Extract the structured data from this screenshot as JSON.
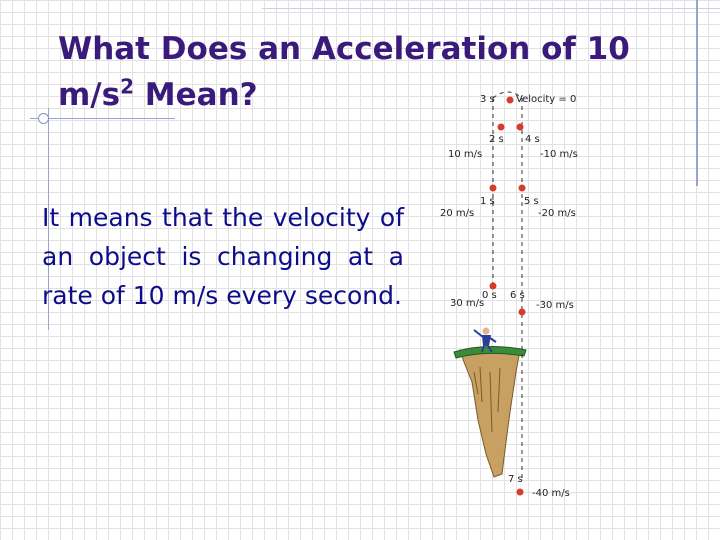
{
  "title": {
    "line1": "What Does an Acceleration of 10",
    "line2_prefix": "m/s",
    "line2_sup": "2",
    "line2_suffix": " Mean?"
  },
  "body": {
    "text": "It means that the velocity of an object is changing at a rate of 10 m/s every second."
  },
  "figure": {
    "labels": {
      "t3": "3 s",
      "top_velocity": "Velocity = 0",
      "t2": "2 s",
      "t4": "4 s",
      "v10_up": "10 m/s",
      "v10_down": "-10 m/s",
      "t1": "1 s",
      "t5": "5 s",
      "v20_up": "20 m/s",
      "v20_down": "-20 m/s",
      "t0": "0 s",
      "t6": "6 s",
      "v30_up": "30 m/s",
      "v30_down": "-30 m/s",
      "t7": "7 s",
      "v40_down": "-40 m/s"
    },
    "colors": {
      "ball": "#d93a2b",
      "cliff_top": "#3a8c3a",
      "cliff_rock": "#c8a062",
      "person": "#2a3f9a"
    }
  }
}
